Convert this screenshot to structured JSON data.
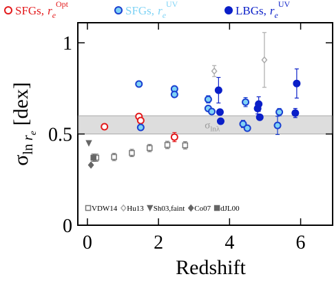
{
  "chart_data": {
    "type": "scatter",
    "xlabel": "Redshift",
    "ylabel": {
      "symbol": "σ",
      "sub": "ln ",
      "sub_symbol": "r",
      "sub_sub": "e",
      "unit": " [dex]"
    },
    "xlim": [
      -0.27,
      6.9
    ],
    "ylim": [
      0,
      1.11
    ],
    "xticks": [
      0,
      2,
      4,
      6
    ],
    "yticks": [
      0,
      0.5,
      1
    ],
    "band": {
      "ymin": 0.5,
      "ymax": 0.6,
      "x": 3.3,
      "y": 0.53,
      "symbol": "σ",
      "sub": "lnλ",
      "color": "#dddddd"
    },
    "series": [
      {
        "name": "SFGs,",
        "symbol": "r",
        "sub": "e",
        "sup": "Opt",
        "marker": "circle-open",
        "color": "#e31a1c",
        "legend": "top",
        "x": [
          0.48,
          1.45,
          1.5,
          2.45
        ],
        "values": [
          0.54,
          0.596,
          0.574,
          0.483
        ],
        "errors": [
          0.01,
          0.01,
          0.01,
          0.025
        ]
      },
      {
        "name": "SFGs,",
        "symbol": "r",
        "sub": "e",
        "sup": "UV",
        "marker": "circle-light",
        "color": "#7fd3f5",
        "edge": "#1a3fd0",
        "legend": "top",
        "x": [
          1.45,
          1.5,
          2.45,
          2.45,
          3.4,
          3.4,
          3.5,
          4.38,
          4.45,
          4.5,
          5.4,
          5.35
        ],
        "values": [
          0.774,
          0.536,
          0.747,
          0.717,
          0.69,
          0.64,
          0.623,
          0.555,
          0.675,
          0.532,
          0.62,
          0.547
        ],
        "errors": [
          0.01,
          0.01,
          0.01,
          0.01,
          0.02,
          0.015,
          0.01,
          0.02,
          0.025,
          0.01,
          0.02,
          0.05
        ]
      },
      {
        "name": "LBGs,",
        "symbol": "r",
        "sub": "e",
        "sup": "UV",
        "marker": "circle-filled",
        "color": "#0a1fc8",
        "legend": "top",
        "x": [
          3.69,
          3.73,
          3.75,
          4.79,
          4.82,
          4.85,
          5.89,
          5.85
        ],
        "values": [
          0.74,
          0.62,
          0.57,
          0.64,
          0.664,
          0.592,
          0.777,
          0.615
        ],
        "errors": [
          0.07,
          0.015,
          0.01,
          0.03,
          0.04,
          0.01,
          0.08,
          0.025
        ]
      },
      {
        "name": "VDW14",
        "marker": "square-open",
        "color": "#777777",
        "legend": "bottom",
        "x": [
          0.25,
          0.75,
          1.25,
          1.75,
          2.25,
          2.75
        ],
        "values": [
          0.37,
          0.374,
          0.396,
          0.423,
          0.44,
          0.438
        ],
        "errors": [
          0.02,
          0.02,
          0.02,
          0.02,
          0.02,
          0.02
        ]
      },
      {
        "name": "Hu13",
        "marker": "diamond-open",
        "color": "#aaaaaa",
        "legend": "bottom",
        "x": [
          3.57,
          4.98
        ],
        "values": [
          0.845,
          0.906
        ],
        "errors": [
          0.03,
          0.15
        ]
      },
      {
        "name": "Sh03,faint",
        "marker": "triangle-down",
        "color": "#666666",
        "legend": "bottom",
        "x": [
          0.04
        ],
        "values": [
          0.45
        ],
        "errors": [
          0
        ]
      },
      {
        "name": "Co07",
        "marker": "diamond-filled",
        "color": "#666666",
        "legend": "bottom",
        "x": [
          0.1
        ],
        "values": [
          0.33
        ],
        "errors": [
          0
        ]
      },
      {
        "name": "dJL00",
        "marker": "square-filled",
        "color": "#666666",
        "legend": "bottom",
        "x": [
          0.17
        ],
        "values": [
          0.37
        ],
        "errors": [
          0.02
        ]
      }
    ]
  }
}
